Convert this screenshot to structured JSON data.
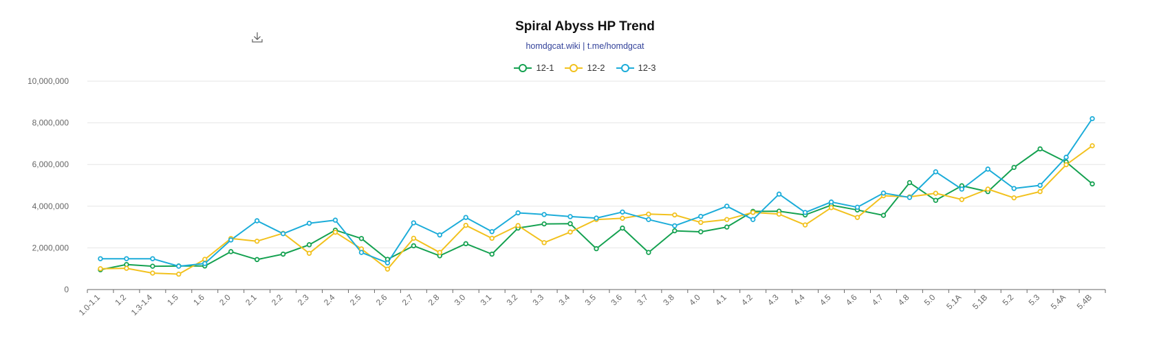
{
  "toolbar": {
    "download_icon": "download-icon"
  },
  "colors": {
    "series": [
      "#14a150",
      "#f2c11d",
      "#1bacd9"
    ],
    "grid": "#e6e6e6",
    "axis": "#666666"
  },
  "chart_data": {
    "type": "line",
    "title": "Spiral Abyss HP Trend",
    "subtitle": "homdgcat.wiki | t.me/homdgcat",
    "legend_position": "top-center",
    "grid": true,
    "ylim": [
      0,
      10000000
    ],
    "y_ticks": [
      "0",
      "2,000,000",
      "4,000,000",
      "6,000,000",
      "8,000,000",
      "10,000,000"
    ],
    "categories": [
      "1.0-1.1",
      "1.2",
      "1.3-1.4",
      "1.5",
      "1.6",
      "2.0",
      "2.1",
      "2.2",
      "2.3",
      "2.4",
      "2.5",
      "2.6",
      "2.7",
      "2.8",
      "3.0",
      "3.1",
      "3.2",
      "3.3",
      "3.4",
      "3.5",
      "3.6",
      "3.7",
      "3.8",
      "4.0",
      "4.1",
      "4.2",
      "4.3",
      "4.4",
      "4.5",
      "4.6",
      "4.7",
      "4.8",
      "5.0",
      "5.1A",
      "5.1B",
      "5.2",
      "5.3",
      "5.4A",
      "5.4B"
    ],
    "series": [
      {
        "name": "12-1",
        "values": [
          950000,
          1200000,
          1120000,
          1130000,
          1130000,
          1820000,
          1440000,
          1700000,
          2150000,
          2850000,
          2450000,
          1450000,
          2100000,
          1620000,
          2200000,
          1700000,
          2950000,
          3150000,
          3160000,
          1960000,
          2950000,
          1780000,
          2820000,
          2770000,
          3000000,
          3750000,
          3760000,
          3580000,
          4050000,
          3820000,
          3560000,
          5130000,
          4280000,
          4980000,
          4700000,
          5860000,
          6750000,
          6120000,
          5070000
        ]
      },
      {
        "name": "12-2",
        "values": [
          1000000,
          1020000,
          790000,
          740000,
          1450000,
          2450000,
          2320000,
          2700000,
          1740000,
          2750000,
          1950000,
          980000,
          2460000,
          1780000,
          3080000,
          2460000,
          3070000,
          2250000,
          2760000,
          3360000,
          3420000,
          3620000,
          3580000,
          3220000,
          3360000,
          3700000,
          3620000,
          3100000,
          3930000,
          3460000,
          4500000,
          4450000,
          4620000,
          4320000,
          4820000,
          4400000,
          4700000,
          5990000,
          6900000
        ]
      },
      {
        "name": "12-3",
        "values": [
          1480000,
          1480000,
          1480000,
          1120000,
          1250000,
          2380000,
          3300000,
          2680000,
          3180000,
          3330000,
          1780000,
          1280000,
          3200000,
          2620000,
          3460000,
          2780000,
          3680000,
          3600000,
          3500000,
          3430000,
          3720000,
          3360000,
          3060000,
          3510000,
          4000000,
          3360000,
          4580000,
          3700000,
          4200000,
          3950000,
          4630000,
          4420000,
          5650000,
          4820000,
          5780000,
          4850000,
          5000000,
          6350000,
          8200000
        ]
      }
    ]
  }
}
